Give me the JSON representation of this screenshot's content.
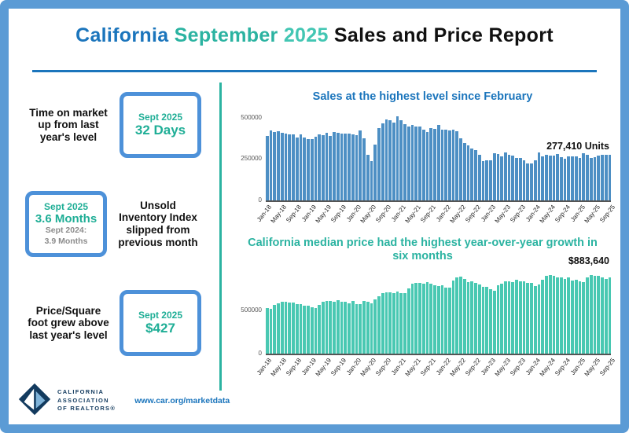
{
  "colors": {
    "frame": "#5B9BD5",
    "blue": "#1B75BC",
    "teal": "#2BB3A1",
    "box_border": "#4D91D9",
    "box_text": "#1FAE96",
    "gray_text": "#8C8C8C"
  },
  "header": {
    "part1": "California",
    "part2": "September",
    "part3": "2025",
    "part4": "Sales and Price Report"
  },
  "stats": {
    "time_on_market": {
      "label": "Time on market up from last year's level",
      "period": "Sept 2025",
      "value": "32 Days"
    },
    "unsold_inventory": {
      "period": "Sept 2025",
      "value": "3.6 Months",
      "prev_period": "Sept 2024:",
      "prev_value": "3.9 Months",
      "label": "Unsold Inventory Index slipped from previous month"
    },
    "price_per_sqft": {
      "label": "Price/Square foot grew above last year's level",
      "period": "Sept 2025",
      "value": "$427"
    }
  },
  "chart_data": [
    {
      "type": "bar",
      "title": "Sales at the highest level since February",
      "title_color": "#1B75BC",
      "bar_color": "#4D8FC4",
      "annotation": "277,410 Units",
      "ylim": [
        0,
        560000
      ],
      "y_ticks": [
        0,
        250000,
        500000
      ],
      "x_start": "Jan-18",
      "x_end": "Sep-25",
      "frequency": "monthly",
      "x_tick_every": 4,
      "x_tick_labels": [
        "Jan-18",
        "May-18",
        "Sep-18",
        "Jan-19",
        "May-19",
        "Sep-19",
        "Jan-20",
        "May-20",
        "Sep-20",
        "Jan-21",
        "May-21",
        "Sep-21",
        "Jan-22",
        "May-22",
        "Sep-22",
        "Jan-23",
        "May-23",
        "Sep-23",
        "Jan-24",
        "May-24",
        "Sep-24",
        "Jan-25",
        "May-25",
        "Sep-25"
      ],
      "values": [
        388000,
        423000,
        412000,
        417000,
        409000,
        405000,
        397000,
        399000,
        382000,
        397000,
        381000,
        372000,
        372000,
        384000,
        398000,
        396000,
        406000,
        390000,
        411000,
        407000,
        404000,
        404000,
        402000,
        398000,
        395000,
        421000,
        373000,
        277000,
        238000,
        339000,
        437000,
        465000,
        490000,
        484000,
        469000,
        509000,
        484000,
        462000,
        446000,
        458000,
        445000,
        444000,
        428000,
        414000,
        438000,
        434000,
        454000,
        429000,
        425000,
        424000,
        426000,
        419000,
        377000,
        345000,
        330000,
        313000,
        305000,
        274000,
        237000,
        240000,
        241000,
        284000,
        281000,
        267000,
        290000,
        277000,
        270000,
        254000,
        254000,
        241000,
        223000,
        225000,
        244000,
        290000,
        267000,
        275000,
        272000,
        270000,
        279000,
        262000,
        253000,
        264000,
        267000,
        268000,
        254000,
        283000,
        277000,
        254000,
        263000,
        270000,
        273000,
        274000,
        277410
      ]
    },
    {
      "type": "bar",
      "title": "California median price had the highest year-over-year growth in six months",
      "title_color": "#2BB3A1",
      "bar_color": "#49C8B2",
      "annotation": "$883,640",
      "ylim": [
        0,
        1000000
      ],
      "y_ticks": [
        0,
        500000
      ],
      "x_start": "Jan-18",
      "x_end": "Sep-25",
      "frequency": "monthly",
      "x_tick_every": 4,
      "x_tick_labels": [
        "Jan-18",
        "May-18",
        "Sep-18",
        "Jan-19",
        "May-19",
        "Sep-19",
        "Jan-20",
        "May-20",
        "Sep-20",
        "Jan-21",
        "May-21",
        "Sep-21",
        "Jan-22",
        "May-22",
        "Sep-22",
        "Jan-23",
        "May-23",
        "Sep-23",
        "Jan-24",
        "May-24",
        "Sep-24",
        "Jan-25",
        "May-25",
        "Sep-25"
      ],
      "values": [
        527000,
        522000,
        564000,
        584000,
        600000,
        602000,
        591000,
        596000,
        578000,
        572000,
        554000,
        557000,
        538000,
        534000,
        565000,
        602000,
        611000,
        611000,
        607000,
        617000,
        605000,
        605000,
        589000,
        615000,
        575000,
        579000,
        612000,
        606000,
        588000,
        626000,
        666000,
        706000,
        712000,
        711000,
        699000,
        717000,
        699000,
        699000,
        759000,
        814000,
        819000,
        819000,
        811000,
        827000,
        808000,
        798000,
        782000,
        797000,
        765000,
        771000,
        849000,
        884000,
        898000,
        864000,
        833000,
        839000,
        821000,
        801000,
        777000,
        774000,
        751000,
        735000,
        791000,
        815000,
        836000,
        838000,
        832000,
        859000,
        843000,
        840000,
        822000,
        819000,
        789000,
        806000,
        854000,
        904000,
        908000,
        900000,
        886000,
        888000,
        868000,
        888000,
        852000,
        861000,
        838000,
        829000,
        884000,
        910000,
        900000,
        899000,
        884000,
        868000,
        883640
      ]
    }
  ],
  "footer": {
    "logo_line1": "CALIFORNIA",
    "logo_line2": "ASSOCIATION",
    "logo_line3": "OF REALTORS®",
    "link": "www.car.org/marketdata"
  }
}
